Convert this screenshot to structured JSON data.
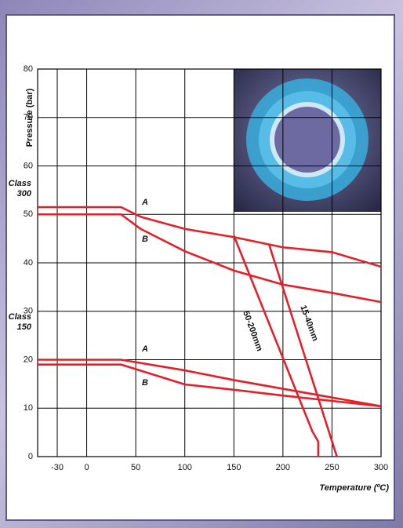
{
  "chart_data": {
    "type": "line",
    "y_label": "Pressure (bar)",
    "x_label": "Temperature (ºC)",
    "xlim": [
      -50,
      300
    ],
    "xticks": [
      -30,
      0,
      50,
      100,
      150,
      200,
      250,
      300
    ],
    "ylim": [
      0,
      80
    ],
    "yticks": [
      0,
      10,
      20,
      30,
      40,
      50,
      60,
      70,
      80
    ],
    "grid": true,
    "annotations": [
      "Class 300",
      "Class 150"
    ],
    "series": [
      {
        "name": "A",
        "color": "#e3202a",
        "x": [
          -50,
          35,
          55,
          100,
          150,
          200,
          250,
          300
        ],
        "values": [
          51.5,
          51.5,
          49.5,
          47,
          45.3,
          43.2,
          42.2,
          39.2
        ]
      },
      {
        "name": "B",
        "color": "#e3202a",
        "x": [
          -50,
          35,
          55,
          100,
          150,
          200,
          250,
          300
        ],
        "values": [
          50,
          50,
          47,
          42.4,
          38.4,
          35.5,
          33.8,
          31.9
        ]
      },
      {
        "name": "A",
        "color": "#e3202a",
        "x": [
          -50,
          35,
          100,
          150,
          200,
          250,
          300
        ],
        "values": [
          20,
          20,
          17.8,
          15.8,
          14,
          12.2,
          10.4
        ]
      },
      {
        "name": "B",
        "color": "#e3202a",
        "x": [
          -50,
          35,
          100,
          150,
          200,
          250,
          300
        ],
        "values": [
          19,
          19,
          14.9,
          13.8,
          12.6,
          11.5,
          10.4
        ]
      },
      {
        "name": "50-200mm",
        "color": "#e3202a",
        "x": [
          150,
          230,
          236,
          236
        ],
        "values": [
          45.6,
          5.2,
          3.1,
          0
        ]
      },
      {
        "name": "15-40mm",
        "color": "#e3202a",
        "x": [
          186,
          255
        ],
        "values": [
          43.7,
          0
        ]
      }
    ]
  }
}
